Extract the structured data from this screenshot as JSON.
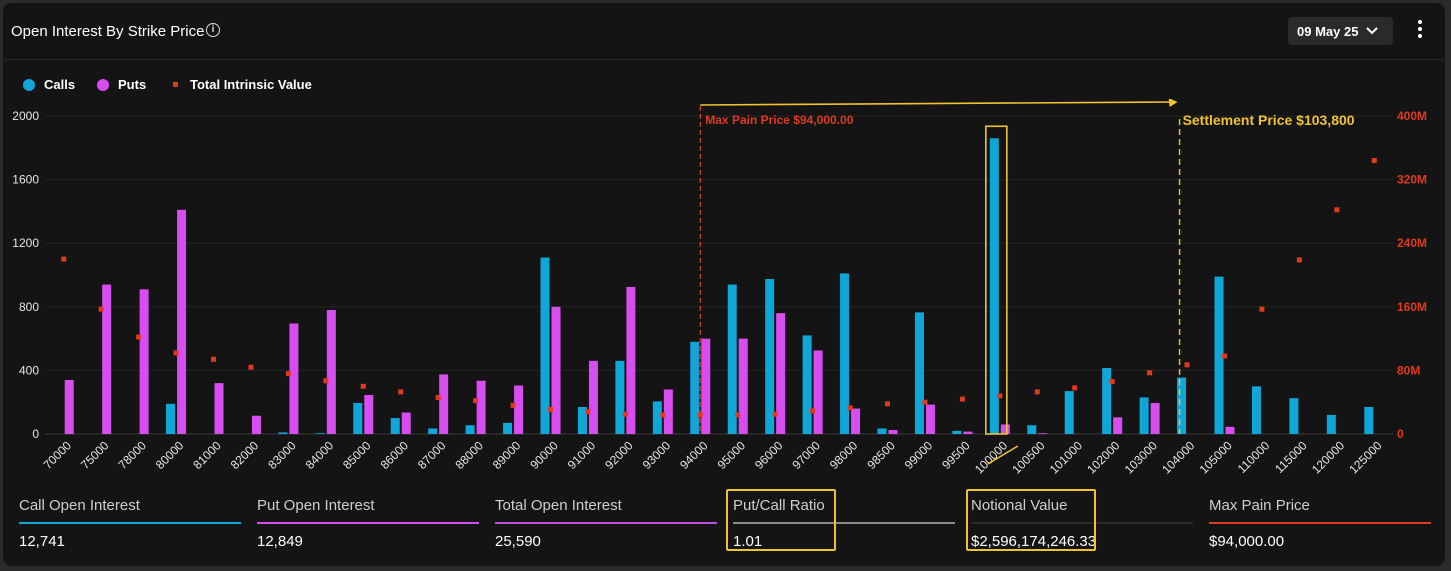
{
  "header": {
    "title": "Open Interest By Strike Price",
    "date_selector": "09 May 25"
  },
  "legend": {
    "calls": "Calls",
    "puts": "Puts",
    "intrinsic": "Total Intrinsic Value"
  },
  "annotations": {
    "max_pain": "Max Pain Price $94,000.00",
    "settlement": "Settlement Price $103,800"
  },
  "colors": {
    "calls": "#0fa7d8",
    "puts": "#d84df0",
    "intrinsic": "#e03a1e",
    "highlight": "#f2c230",
    "max_pain": "#e03a1e"
  },
  "chart_data": {
    "type": "bar",
    "categories": [
      "70000",
      "75000",
      "78000",
      "80000",
      "81000",
      "82000",
      "83000",
      "84000",
      "85000",
      "86000",
      "87000",
      "88000",
      "89000",
      "90000",
      "91000",
      "92000",
      "93000",
      "94000",
      "95000",
      "96000",
      "97000",
      "98000",
      "98500",
      "99000",
      "99500",
      "100000",
      "100500",
      "101000",
      "102000",
      "103000",
      "104000",
      "105000",
      "110000",
      "115000",
      "120000",
      "125000"
    ],
    "series": [
      {
        "name": "Calls",
        "axis": "left",
        "values": [
          0,
          0,
          0,
          190,
          0,
          0,
          10,
          5,
          195,
          100,
          35,
          55,
          70,
          1110,
          170,
          460,
          205,
          580,
          940,
          975,
          620,
          1010,
          35,
          765,
          20,
          1860,
          55,
          270,
          415,
          230,
          355,
          990,
          300,
          225,
          120,
          170
        ]
      },
      {
        "name": "Puts",
        "axis": "left",
        "values": [
          340,
          940,
          910,
          1410,
          320,
          115,
          695,
          780,
          245,
          135,
          375,
          335,
          305,
          800,
          460,
          925,
          280,
          600,
          600,
          760,
          525,
          160,
          25,
          185,
          15,
          60,
          5,
          0,
          105,
          195,
          0,
          45,
          0,
          0,
          0,
          0
        ]
      },
      {
        "name": "Total Intrinsic Value",
        "axis": "right",
        "type": "scatter",
        "values": [
          220,
          157,
          122,
          102,
          94,
          84,
          76,
          67,
          60,
          53,
          46,
          42,
          36,
          31,
          28,
          25,
          24,
          24,
          24,
          25,
          29,
          33,
          38,
          40,
          44,
          48,
          53,
          58,
          66,
          77,
          87,
          98,
          157,
          219,
          282,
          344
        ]
      }
    ],
    "y_left": {
      "ylim": [
        0,
        2000
      ],
      "ticks": [
        "0",
        "400",
        "800",
        "1200",
        "1600",
        "2000"
      ]
    },
    "y_right": {
      "ylim": [
        0,
        400
      ],
      "unit": "M",
      "ticks": [
        "0",
        "80M",
        "160M",
        "240M",
        "320M",
        "400M"
      ]
    },
    "max_pain_strike": "94000",
    "settlement_price": 103800,
    "highlighted_category": "100000",
    "legend_position": "top-left",
    "grid": true
  },
  "stats": [
    {
      "label": "Call Open Interest",
      "value": "12,741",
      "color": "#0fa7d8"
    },
    {
      "label": "Put Open Interest",
      "value": "12,849",
      "color": "#d84df0"
    },
    {
      "label": "Total Open Interest",
      "value": "25,590",
      "color": "#c050e0"
    },
    {
      "label": "Put/Call Ratio",
      "value": "1.01",
      "color": "#8a8a8a"
    },
    {
      "label": "Notional Value",
      "value": "$2,596,174,246.33",
      "color": "#2a2a2a"
    },
    {
      "label": "Max Pain Price",
      "value": "$94,000.00",
      "color": "#e03a1e"
    }
  ]
}
